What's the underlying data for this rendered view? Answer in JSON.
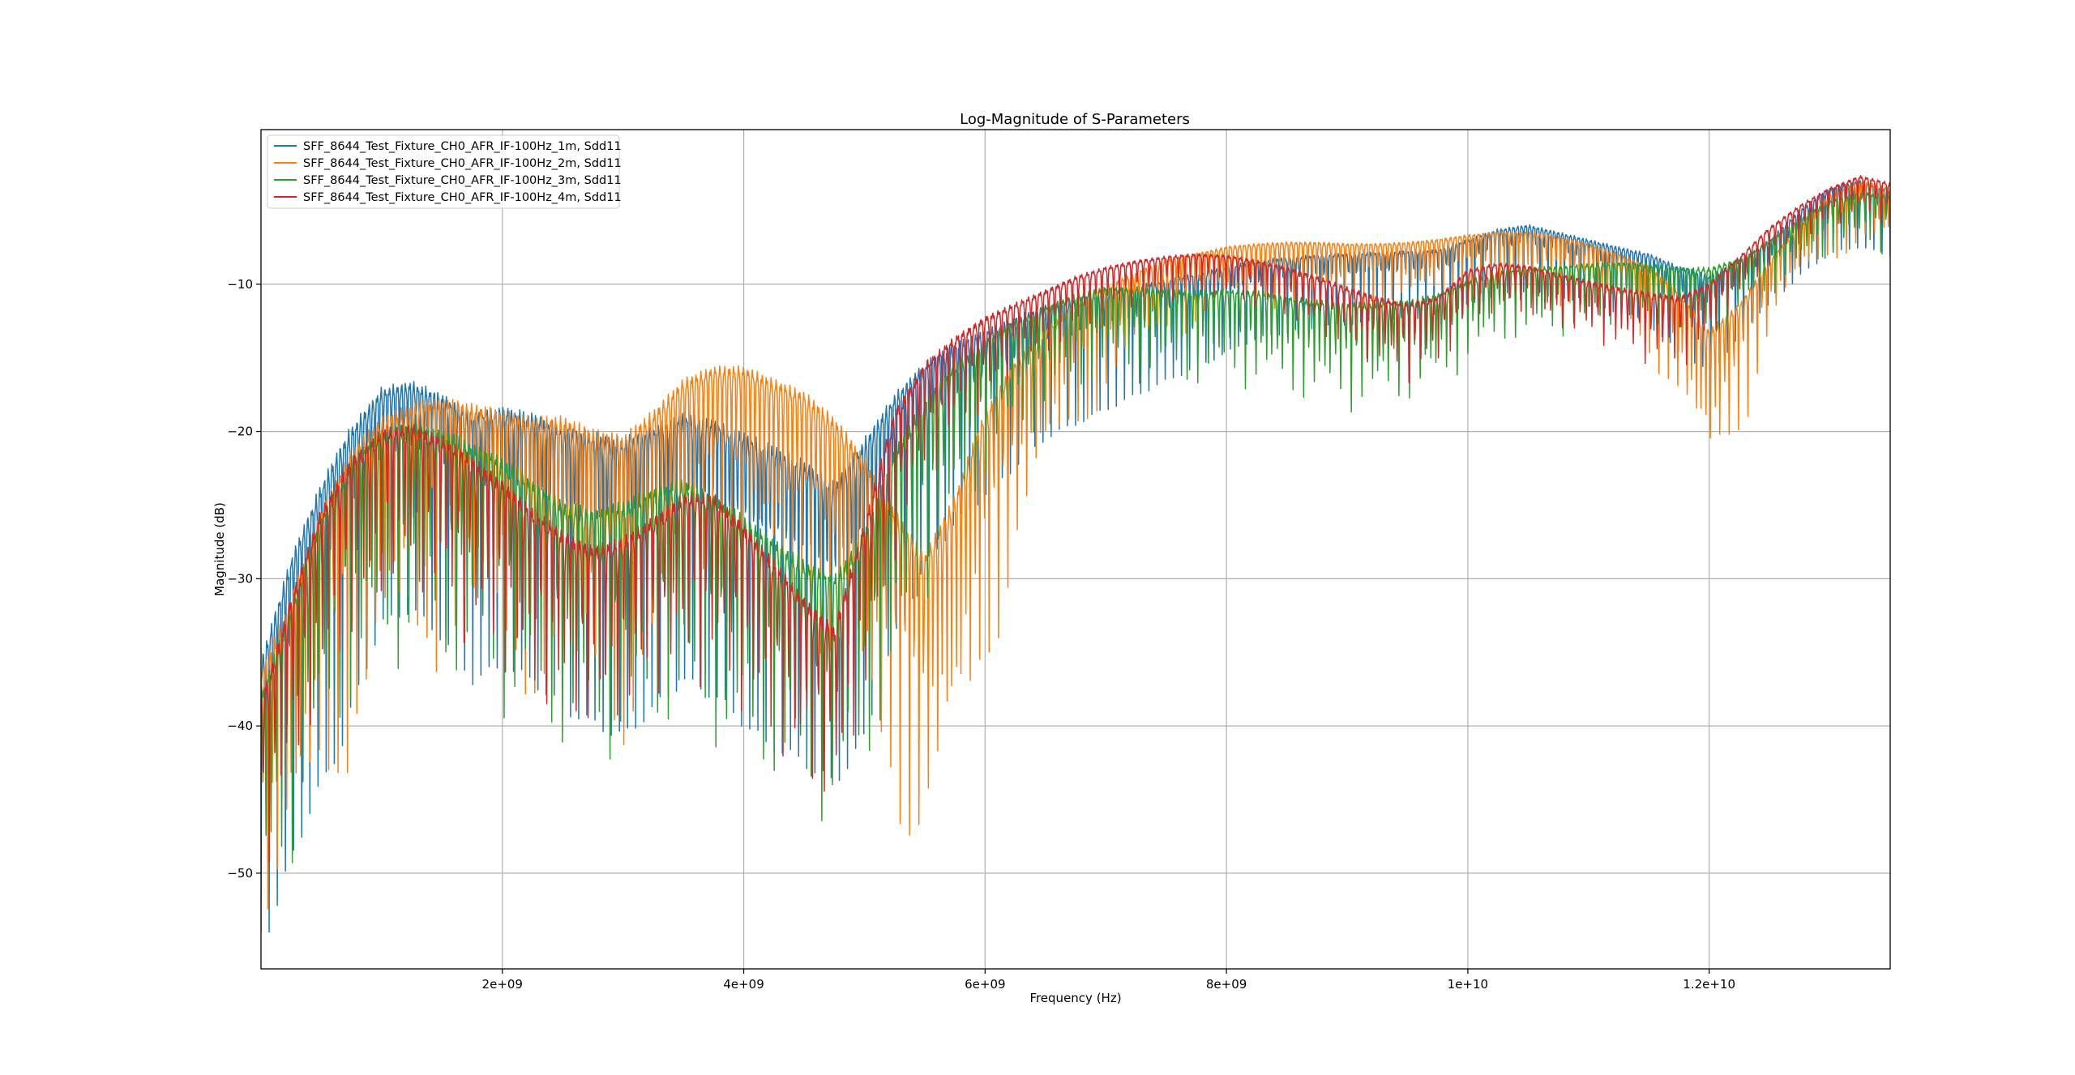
{
  "chart_data": {
    "type": "line",
    "title": "Log-Magnitude of S-Parameters",
    "xlabel": "Frequency (Hz)",
    "ylabel": "Magnitude (dB)",
    "xlim": [
      0,
      13500000000
    ],
    "ylim": [
      -56.5,
      0.5
    ],
    "x_ticks": [
      2000000000,
      4000000000,
      6000000000,
      8000000000,
      10000000000,
      12000000000
    ],
    "x_tick_labels": [
      "2e+09",
      "4e+09",
      "6e+09",
      "8e+09",
      "1e+10",
      "1.2e+10"
    ],
    "y_ticks": [
      -10,
      -20,
      -30,
      -40,
      -50
    ],
    "y_tick_labels": [
      "−10",
      "−20",
      "−30",
      "−40",
      "−50"
    ],
    "grid": true,
    "legend_position": "top-left",
    "series": [
      {
        "name": "SFF_8644_Test_Fixture_CH0_AFR_IF-100Hz_1m, Sdd11",
        "color": "#1f77b4",
        "x": [
          0,
          250000000,
          500000000,
          750000000,
          1000000000,
          1250000000,
          1500000000,
          1750000000,
          2000000000,
          2250000000,
          2500000000,
          2750000000,
          3000000000,
          3250000000,
          3500000000,
          3750000000,
          4000000000,
          4250000000,
          4500000000,
          4750000000,
          5000000000,
          5250000000,
          5500000000,
          5750000000,
          6000000000,
          6250000000,
          6500000000,
          6750000000,
          7000000000,
          7250000000,
          7500000000,
          7750000000,
          8000000000,
          8250000000,
          8500000000,
          8750000000,
          9000000000,
          9250000000,
          9500000000,
          9750000000,
          10000000000,
          10250000000,
          10500000000,
          10750000000,
          11000000000,
          11250000000,
          11500000000,
          11750000000,
          12000000000,
          12250000000,
          12500000000,
          12750000000,
          13000000000,
          13250000000,
          13500000000
        ],
        "values": [
          -38,
          -31,
          -26,
          -22,
          -19,
          -18.5,
          -19.5,
          -21,
          -20.5,
          -21,
          -22,
          -22.5,
          -23,
          -22,
          -21,
          -21.5,
          -22.5,
          -23.5,
          -24.5,
          -26,
          -23,
          -19.5,
          -17,
          -15.5,
          -14.5,
          -13.5,
          -12.5,
          -12,
          -11.5,
          -11,
          -10.5,
          -10,
          -9.5,
          -9,
          -8.8,
          -8.6,
          -8.5,
          -8.4,
          -8.3,
          -8.2,
          -7.5,
          -6.8,
          -6.5,
          -7,
          -7.5,
          -8,
          -8.5,
          -9.5,
          -10.2,
          -9,
          -7.5,
          -5.5,
          -4,
          -3.5,
          -4.2
        ],
        "ripple": 2.8
      },
      {
        "name": "SFF_8644_Test_Fixture_CH0_AFR_IF-100Hz_2m, Sdd11",
        "color": "#ff7f0e",
        "x": [
          0,
          250000000,
          500000000,
          750000000,
          1000000000,
          1250000000,
          1500000000,
          1750000000,
          2000000000,
          2250000000,
          2500000000,
          2750000000,
          3000000000,
          3250000000,
          3500000000,
          3750000000,
          4000000000,
          4250000000,
          4500000000,
          4750000000,
          5000000000,
          5250000000,
          5500000000,
          5750000000,
          6000000000,
          6250000000,
          6500000000,
          6750000000,
          7000000000,
          7250000000,
          7500000000,
          7750000000,
          8000000000,
          8250000000,
          8500000000,
          8750000000,
          9000000000,
          9250000000,
          9500000000,
          9750000000,
          10000000000,
          10250000000,
          10500000000,
          10750000000,
          11000000000,
          11250000000,
          11500000000,
          11750000000,
          12000000000,
          12250000000,
          12500000000,
          12750000000,
          13000000000,
          13250000000,
          13500000000
        ],
        "values": [
          -39,
          -34,
          -28,
          -24,
          -21.5,
          -20.5,
          -20,
          -20.5,
          -21,
          -21.5,
          -21.5,
          -22.5,
          -23,
          -21,
          -18.5,
          -17.5,
          -17.5,
          -18.5,
          -19.5,
          -21.5,
          -24.5,
          -28,
          -31,
          -27,
          -21,
          -17,
          -14.5,
          -12.5,
          -11,
          -10,
          -9,
          -8.5,
          -8,
          -7.8,
          -7.7,
          -7.7,
          -7.8,
          -7.8,
          -7.7,
          -7.5,
          -7.2,
          -7,
          -7,
          -7.3,
          -7.8,
          -8.5,
          -9.5,
          -11.5,
          -14.5,
          -12.5,
          -9,
          -6.5,
          -4.5,
          -3.5,
          -4
        ],
        "ripple": 3.0
      },
      {
        "name": "SFF_8644_Test_Fixture_CH0_AFR_IF-100Hz_3m, Sdd11",
        "color": "#2ca02c",
        "x": [
          0,
          250000000,
          500000000,
          750000000,
          1000000000,
          1250000000,
          1500000000,
          1750000000,
          2000000000,
          2250000000,
          2500000000,
          2750000000,
          3000000000,
          3250000000,
          3500000000,
          3750000000,
          4000000000,
          4250000000,
          4500000000,
          4750000000,
          5000000000,
          5250000000,
          5500000000,
          5750000000,
          6000000000,
          6250000000,
          6500000000,
          6750000000,
          7000000000,
          7250000000,
          7500000000,
          7750000000,
          8000000000,
          8250000000,
          8500000000,
          8750000000,
          9000000000,
          9250000000,
          9500000000,
          9750000000,
          10000000000,
          10250000000,
          10500000000,
          10750000000,
          11000000000,
          11250000000,
          11500000000,
          11750000000,
          12000000000,
          12250000000,
          12500000000,
          12750000000,
          13000000000,
          13250000000,
          13500000000
        ],
        "values": [
          -40,
          -34,
          -28,
          -24,
          -22,
          -21.5,
          -22,
          -23,
          -24,
          -25.5,
          -27,
          -27.5,
          -27,
          -26,
          -25.5,
          -26.5,
          -28,
          -29.5,
          -31,
          -32,
          -29,
          -23.5,
          -19.5,
          -17,
          -15,
          -13.5,
          -12.5,
          -11.5,
          -11,
          -11,
          -11.2,
          -11.3,
          -11.2,
          -11.3,
          -11.7,
          -12,
          -12.2,
          -12.2,
          -12,
          -11.5,
          -10.5,
          -9.8,
          -9.5,
          -9.4,
          -9.2,
          -9.1,
          -9.2,
          -9.5,
          -9.5,
          -8.8,
          -7.5,
          -6,
          -4.8,
          -4.2,
          -4.5
        ],
        "ripple": 2.4
      },
      {
        "name": "SFF_8644_Test_Fixture_CH0_AFR_IF-100Hz_4m, Sdd11",
        "color": "#d62728",
        "x": [
          0,
          250000000,
          500000000,
          750000000,
          1000000000,
          1250000000,
          1500000000,
          1750000000,
          2000000000,
          2250000000,
          2500000000,
          2750000000,
          3000000000,
          3250000000,
          3500000000,
          3750000000,
          4000000000,
          4250000000,
          4500000000,
          4750000000,
          5000000000,
          5250000000,
          5500000000,
          5750000000,
          6000000000,
          6250000000,
          6500000000,
          6750000000,
          7000000000,
          7250000000,
          7500000000,
          7750000000,
          8000000000,
          8250000000,
          8500000000,
          8750000000,
          9000000000,
          9250000000,
          9500000000,
          9750000000,
          10000000000,
          10250000000,
          10500000000,
          10750000000,
          11000000000,
          11250000000,
          11500000000,
          11750000000,
          12000000000,
          12250000000,
          12500000000,
          12750000000,
          13000000000,
          13250000000,
          13500000000
        ],
        "values": [
          -40,
          -33,
          -27,
          -23.5,
          -21.5,
          -21,
          -22,
          -23.5,
          -25,
          -27,
          -28.5,
          -29.5,
          -29,
          -27.5,
          -26,
          -26,
          -28,
          -30.5,
          -33,
          -35,
          -28,
          -20,
          -16.5,
          -14.5,
          -13,
          -12,
          -11,
          -10,
          -9.3,
          -8.8,
          -8.5,
          -8.3,
          -8.4,
          -8.8,
          -9.3,
          -10,
          -10.8,
          -11.5,
          -12,
          -11.5,
          -9.5,
          -9,
          -9.2,
          -9.8,
          -10.3,
          -10.8,
          -11.2,
          -11.5,
          -10.5,
          -8.5,
          -6.5,
          -5,
          -3.8,
          -3,
          -3.5
        ],
        "ripple": 1.8
      }
    ]
  }
}
